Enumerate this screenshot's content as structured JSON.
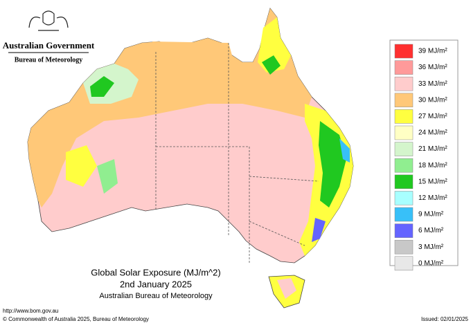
{
  "header": {
    "government": "Australian Government",
    "agency": "Bureau of Meteorology"
  },
  "title": {
    "line1": "Global Solar Exposure (MJ/m^2)",
    "line2": "2nd January 2025",
    "line3": "Australian Bureau of Meteorology"
  },
  "legend": [
    {
      "label": "39 MJ/m²",
      "color": "#ff3030"
    },
    {
      "label": "36 MJ/m²",
      "color": "#ff9a9a"
    },
    {
      "label": "33 MJ/m²",
      "color": "#ffcccc"
    },
    {
      "label": "30 MJ/m²",
      "color": "#ffc878"
    },
    {
      "label": "27 MJ/m²",
      "color": "#ffff40"
    },
    {
      "label": "24 MJ/m²",
      "color": "#ffffc4"
    },
    {
      "label": "21 MJ/m²",
      "color": "#d4f5cc"
    },
    {
      "label": "18 MJ/m²",
      "color": "#90ee90"
    },
    {
      "label": "15 MJ/m²",
      "color": "#20c820"
    },
    {
      "label": "12 MJ/m²",
      "color": "#a8ffff"
    },
    {
      "label": "9 MJ/m²",
      "color": "#38c0f8"
    },
    {
      "label": "6 MJ/m²",
      "color": "#6464ff"
    },
    {
      "label": "3 MJ/m²",
      "color": "#c8c8c8"
    },
    {
      "label": "0 MJ/m²",
      "color": "#e8e8e8"
    }
  ],
  "footer": {
    "url": "http://www.bom.gov.au",
    "copyright": "© Commonwealth of Australia 2025, Bureau of Meteorology",
    "issued": "Issued: 02/01/2025"
  }
}
